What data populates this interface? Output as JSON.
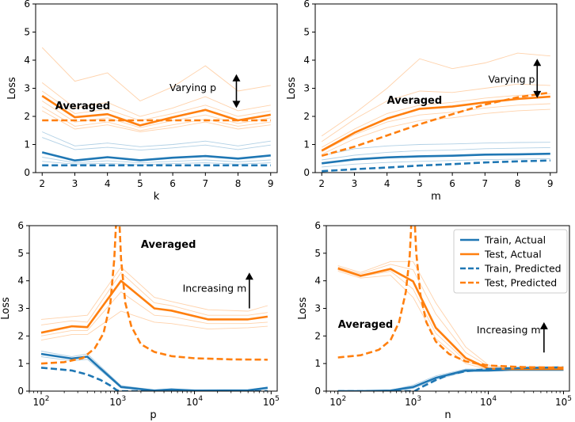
{
  "colors": {
    "train": "#1f77b4",
    "test": "#ff7f0e"
  },
  "legend": [
    {
      "label": "Train, Actual",
      "color": "#1f77b4",
      "dash": false
    },
    {
      "label": "Test, Actual",
      "color": "#ff7f0e",
      "dash": false
    },
    {
      "label": "Train, Predicted",
      "color": "#1f77b4",
      "dash": true
    },
    {
      "label": "Test, Predicted",
      "color": "#ff7f0e",
      "dash": true
    }
  ],
  "chart_data": [
    {
      "type": "line",
      "xlabel": "k",
      "ylabel": "Loss",
      "x": [
        2,
        3,
        4,
        5,
        6,
        7,
        8,
        9
      ],
      "xlim": [
        1.8,
        9.2
      ],
      "ylim": [
        0,
        6
      ],
      "yticks": [
        0,
        1,
        2,
        3,
        4,
        5,
        6
      ],
      "xticks": [
        2,
        3,
        4,
        5,
        6,
        7,
        8,
        9
      ],
      "xscale": "linear",
      "annotations": [
        {
          "text": "Averaged",
          "bold": true,
          "x": 2.4,
          "y": 2.25
        },
        {
          "text": "Varying p",
          "bold": false,
          "x": 5.9,
          "y": 2.9
        }
      ],
      "arrow": {
        "type": "double",
        "x": 7.95,
        "y1": 2.3,
        "y2": 3.5
      },
      "series": [
        {
          "name": "Train, Actual",
          "values": [
            0.72,
            0.43,
            0.55,
            0.44,
            0.53,
            0.59,
            0.5,
            0.61
          ]
        },
        {
          "name": "Test, Actual",
          "values": [
            2.73,
            1.97,
            2.08,
            1.68,
            1.97,
            2.23,
            1.86,
            2.06
          ]
        },
        {
          "name": "Train, Predicted",
          "values": [
            0.26,
            0.26,
            0.26,
            0.26,
            0.26,
            0.26,
            0.26,
            0.26
          ]
        },
        {
          "name": "Test, Predicted",
          "values": [
            1.86,
            1.86,
            1.86,
            1.86,
            1.86,
            1.86,
            1.86,
            1.86
          ]
        }
      ],
      "thin_series": [
        {
          "color": "test",
          "values": [
            4.45,
            3.25,
            3.55,
            2.55,
            3.05,
            3.8,
            2.9,
            3.1
          ]
        },
        {
          "color": "test",
          "values": [
            3.2,
            2.3,
            2.5,
            2.0,
            2.3,
            2.7,
            2.2,
            2.4
          ]
        },
        {
          "color": "test",
          "values": [
            2.9,
            2.1,
            2.25,
            1.85,
            2.1,
            2.4,
            2.0,
            2.2
          ]
        },
        {
          "color": "test",
          "values": [
            2.55,
            1.8,
            1.95,
            1.6,
            1.85,
            2.05,
            1.75,
            1.95
          ]
        },
        {
          "color": "test",
          "values": [
            2.35,
            1.65,
            1.8,
            1.5,
            1.7,
            1.9,
            1.65,
            1.8
          ]
        },
        {
          "color": "test",
          "values": [
            2.2,
            1.55,
            1.7,
            1.45,
            1.6,
            1.8,
            1.55,
            1.7
          ]
        },
        {
          "color": "train",
          "values": [
            1.45,
            0.95,
            1.05,
            0.92,
            1.0,
            1.12,
            0.95,
            1.12
          ]
        },
        {
          "color": "train",
          "values": [
            1.25,
            0.82,
            0.9,
            0.8,
            0.88,
            0.98,
            0.82,
            0.98
          ]
        },
        {
          "color": "train",
          "values": [
            0.55,
            0.35,
            0.42,
            0.35,
            0.4,
            0.45,
            0.38,
            0.45
          ]
        },
        {
          "color": "train",
          "values": [
            0.4,
            0.3,
            0.33,
            0.28,
            0.32,
            0.35,
            0.3,
            0.35
          ]
        }
      ]
    },
    {
      "type": "line",
      "xlabel": "m",
      "ylabel": "Loss",
      "x": [
        2,
        3,
        4,
        5,
        6,
        7,
        8,
        9
      ],
      "xlim": [
        1.8,
        9.2
      ],
      "ylim": [
        0,
        6
      ],
      "yticks": [
        0,
        1,
        2,
        3,
        4,
        5,
        6
      ],
      "xticks": [
        2,
        3,
        4,
        5,
        6,
        7,
        8,
        9
      ],
      "xscale": "linear",
      "annotations": [
        {
          "text": "Averaged",
          "bold": true,
          "x": 4.0,
          "y": 2.45
        },
        {
          "text": "Varying p",
          "bold": false,
          "x": 7.1,
          "y": 3.2
        }
      ],
      "arrow": {
        "type": "double",
        "x": 8.6,
        "y1": 2.65,
        "y2": 4.05
      },
      "series": [
        {
          "name": "Train, Actual",
          "values": [
            0.33,
            0.47,
            0.54,
            0.58,
            0.6,
            0.64,
            0.65,
            0.67
          ]
        },
        {
          "name": "Test, Actual",
          "values": [
            0.78,
            1.42,
            1.92,
            2.27,
            2.35,
            2.5,
            2.62,
            2.7
          ]
        },
        {
          "name": "Train, Predicted",
          "values": [
            0.05,
            0.12,
            0.18,
            0.25,
            0.3,
            0.36,
            0.4,
            0.43
          ]
        },
        {
          "name": "Test, Predicted",
          "values": [
            0.6,
            0.92,
            1.32,
            1.72,
            2.08,
            2.42,
            2.68,
            2.85
          ]
        }
      ],
      "thin_series": [
        {
          "color": "test",
          "values": [
            1.3,
            2.1,
            3.0,
            4.05,
            3.7,
            3.9,
            4.25,
            4.15
          ]
        },
        {
          "color": "test",
          "values": [
            1.1,
            1.9,
            2.55,
            2.9,
            2.85,
            3.0,
            3.15,
            3.1
          ]
        },
        {
          "color": "test",
          "values": [
            0.9,
            1.55,
            2.1,
            2.4,
            2.5,
            2.65,
            2.75,
            2.8
          ]
        },
        {
          "color": "test",
          "values": [
            0.75,
            1.35,
            1.8,
            2.05,
            2.15,
            2.3,
            2.4,
            2.45
          ]
        },
        {
          "color": "test",
          "values": [
            0.65,
            1.2,
            1.6,
            1.85,
            1.95,
            2.1,
            2.2,
            2.25
          ]
        },
        {
          "color": "train",
          "values": [
            0.6,
            0.85,
            0.95,
            1.0,
            1.02,
            1.05,
            1.07,
            1.08
          ]
        },
        {
          "color": "train",
          "values": [
            0.45,
            0.62,
            0.72,
            0.78,
            0.8,
            0.85,
            0.87,
            0.89
          ]
        },
        {
          "color": "train",
          "values": [
            0.2,
            0.3,
            0.36,
            0.4,
            0.43,
            0.46,
            0.48,
            0.5
          ]
        }
      ]
    },
    {
      "type": "line",
      "xlabel": "p",
      "ylabel": "Loss",
      "xscale": "log",
      "xlim": [
        70,
        120000
      ],
      "ylim": [
        0,
        6
      ],
      "yticks": [
        0,
        1,
        2,
        3,
        4,
        5,
        6
      ],
      "xticks": [
        100,
        1000,
        10000,
        100000
      ],
      "xticklabels": [
        "10",
        "10",
        "10",
        "10"
      ],
      "xtickexp": [
        "2",
        "3",
        "4",
        "5"
      ],
      "annotations": [
        {
          "text": "Averaged",
          "bold": true,
          "x": 2000,
          "y": 5.2
        },
        {
          "text": "Increasing m",
          "bold": false,
          "x": 7000,
          "y": 3.6
        }
      ],
      "arrow": {
        "type": "up",
        "x": 52000,
        "y1": 3.0,
        "y2": 4.3
      },
      "series": [
        {
          "name": "Train, Actual",
          "x": [
            100,
            250,
            400,
            1100,
            3000,
            5000,
            10000,
            50000,
            90000
          ],
          "values": [
            1.35,
            1.18,
            1.25,
            0.15,
            0.02,
            0.06,
            0.02,
            0.03,
            0.12
          ]
        },
        {
          "name": "Test, Actual",
          "x": [
            100,
            250,
            400,
            1100,
            3000,
            5000,
            15000,
            50000,
            90000
          ],
          "values": [
            2.12,
            2.35,
            2.32,
            4.0,
            3.0,
            2.92,
            2.6,
            2.6,
            2.7
          ]
        },
        {
          "name": "Train, Predicted",
          "x": [
            100,
            250,
            400,
            600,
            800,
            950,
            1050,
            1400,
            3000,
            10000,
            90000
          ],
          "values": [
            0.85,
            0.75,
            0.6,
            0.4,
            0.2,
            0.05,
            0.0,
            0.0,
            0.0,
            0.0,
            0.0
          ]
        },
        {
          "name": "Test, Predicted",
          "x": [
            100,
            200,
            350,
            500,
            650,
            800,
            900,
            960,
            1040,
            1100,
            1250,
            1500,
            2000,
            3000,
            5000,
            10000,
            30000,
            90000
          ],
          "values": [
            1.0,
            1.05,
            1.2,
            1.55,
            2.1,
            3.2,
            4.8,
            6.4,
            6.4,
            4.8,
            3.2,
            2.35,
            1.7,
            1.42,
            1.27,
            1.19,
            1.15,
            1.14
          ]
        }
      ],
      "thin_series": [
        {
          "color": "test",
          "x": [
            100,
            250,
            400,
            1100,
            3000,
            5000,
            15000,
            50000,
            90000
          ],
          "values": [
            2.6,
            2.7,
            2.75,
            4.5,
            3.4,
            3.25,
            2.95,
            2.9,
            3.1
          ]
        },
        {
          "color": "test",
          "x": [
            100,
            250,
            400,
            1100,
            3000,
            5000,
            15000,
            50000,
            90000
          ],
          "values": [
            2.4,
            2.55,
            2.5,
            4.3,
            3.2,
            3.1,
            2.75,
            2.75,
            2.85
          ]
        },
        {
          "color": "test",
          "x": [
            100,
            250,
            400,
            1100,
            3000,
            5000,
            15000,
            50000,
            90000
          ],
          "values": [
            2.0,
            2.2,
            2.2,
            3.6,
            2.75,
            2.7,
            2.45,
            2.45,
            2.5
          ]
        },
        {
          "color": "test",
          "x": [
            100,
            250,
            400,
            1100,
            3000,
            5000,
            15000,
            50000,
            90000
          ],
          "values": [
            1.85,
            2.05,
            2.05,
            2.9,
            2.5,
            2.45,
            2.25,
            2.3,
            2.35
          ]
        },
        {
          "color": "train",
          "x": [
            100,
            250,
            400,
            1100,
            3000,
            5000,
            10000,
            50000,
            90000
          ],
          "values": [
            1.45,
            1.25,
            1.35,
            0.2,
            0.04,
            0.08,
            0.03,
            0.04,
            0.15
          ]
        },
        {
          "color": "train",
          "x": [
            100,
            250,
            400,
            1100,
            3000,
            5000,
            10000,
            50000,
            90000
          ],
          "values": [
            1.25,
            1.1,
            1.15,
            0.12,
            0.01,
            0.04,
            0.01,
            0.02,
            0.1
          ]
        }
      ]
    },
    {
      "type": "line",
      "xlabel": "n",
      "ylabel": "Loss",
      "xscale": "log",
      "xlim": [
        70,
        120000
      ],
      "ylim": [
        0,
        6
      ],
      "yticks": [
        0,
        1,
        2,
        3,
        4,
        5,
        6
      ],
      "xticks": [
        100,
        1000,
        10000,
        100000
      ],
      "xticklabels": [
        "10",
        "10",
        "10",
        "10"
      ],
      "xtickexp": [
        "2",
        "3",
        "4",
        "5"
      ],
      "annotations": [
        {
          "text": "Averaged",
          "bold": true,
          "x": 100,
          "y": 2.3
        },
        {
          "text": "Increasing m",
          "bold": false,
          "x": 7000,
          "y": 2.1
        }
      ],
      "arrow": {
        "type": "up",
        "x": 55000,
        "y1": 1.4,
        "y2": 2.5
      },
      "series": [
        {
          "name": "Train, Actual",
          "x": [
            100,
            200,
            500,
            1000,
            2000,
            5000,
            10000,
            20000,
            50000,
            100000
          ],
          "values": [
            0.0,
            0.0,
            0.02,
            0.15,
            0.48,
            0.75,
            0.75,
            0.78,
            0.78,
            0.78
          ]
        },
        {
          "name": "Test, Actual",
          "x": [
            100,
            200,
            500,
            1000,
            2000,
            5000,
            10000,
            20000,
            50000,
            100000
          ],
          "values": [
            4.45,
            4.18,
            4.43,
            3.98,
            2.3,
            1.2,
            0.82,
            0.8,
            0.8,
            0.8
          ]
        },
        {
          "name": "Train, Predicted",
          "x": [
            100,
            500,
            900,
            1050,
            1300,
            2000,
            3000,
            5000,
            10000,
            30000,
            100000
          ],
          "values": [
            0.0,
            0.0,
            0.0,
            0.0,
            0.15,
            0.4,
            0.6,
            0.72,
            0.8,
            0.84,
            0.86
          ]
        },
        {
          "name": "Test, Predicted",
          "x": [
            100,
            200,
            350,
            500,
            650,
            800,
            900,
            960,
            1040,
            1100,
            1250,
            1500,
            2000,
            3000,
            5000,
            10000,
            30000,
            100000
          ],
          "values": [
            1.22,
            1.3,
            1.5,
            1.85,
            2.5,
            3.6,
            4.9,
            6.4,
            6.4,
            5.0,
            3.5,
            2.5,
            1.8,
            1.35,
            1.08,
            0.93,
            0.87,
            0.85
          ]
        }
      ],
      "thin_series": [
        {
          "color": "test",
          "x": [
            100,
            200,
            500,
            1000,
            2000,
            5000,
            10000,
            20000,
            50000,
            100000
          ],
          "values": [
            4.55,
            4.3,
            4.7,
            4.7,
            3.2,
            1.6,
            0.95,
            0.85,
            0.85,
            0.85
          ]
        },
        {
          "color": "test",
          "x": [
            100,
            200,
            500,
            1000,
            2000,
            5000,
            10000,
            20000,
            50000,
            100000
          ],
          "values": [
            4.5,
            4.25,
            4.6,
            4.4,
            2.8,
            1.4,
            0.9,
            0.83,
            0.82,
            0.82
          ]
        },
        {
          "color": "test",
          "x": [
            100,
            200,
            500,
            1000,
            2000,
            5000,
            10000,
            20000,
            50000,
            100000
          ],
          "values": [
            4.4,
            4.15,
            4.35,
            3.7,
            2.1,
            1.1,
            0.8,
            0.78,
            0.78,
            0.78
          ]
        },
        {
          "color": "test",
          "x": [
            100,
            200,
            500,
            1000,
            2000,
            5000,
            10000,
            20000,
            50000,
            100000
          ],
          "values": [
            4.35,
            4.1,
            4.2,
            3.4,
            1.9,
            1.0,
            0.78,
            0.76,
            0.76,
            0.76
          ]
        },
        {
          "color": "train",
          "x": [
            100,
            200,
            500,
            1000,
            2000,
            5000,
            10000,
            20000,
            50000,
            100000
          ],
          "values": [
            0.0,
            0.0,
            0.03,
            0.22,
            0.55,
            0.8,
            0.8,
            0.82,
            0.82,
            0.82
          ]
        },
        {
          "color": "train",
          "x": [
            100,
            200,
            500,
            1000,
            2000,
            5000,
            10000,
            20000,
            50000,
            100000
          ],
          "values": [
            0.0,
            0.0,
            0.01,
            0.1,
            0.42,
            0.7,
            0.72,
            0.74,
            0.74,
            0.74
          ]
        }
      ]
    }
  ]
}
